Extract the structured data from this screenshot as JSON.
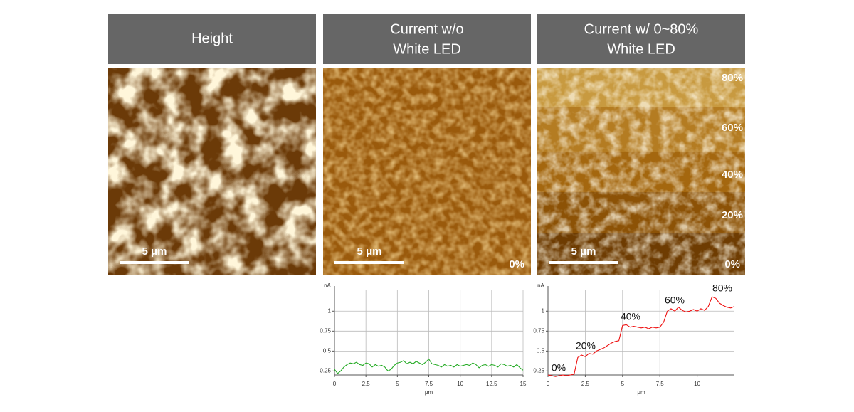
{
  "panels": [
    {
      "header": [
        "Height"
      ],
      "scale_bar": "5 μm"
    },
    {
      "header": [
        "Current w/o",
        "White LED"
      ],
      "scale_bar": "5 μm",
      "levels": [
        "0%"
      ]
    },
    {
      "header": [
        "Current w/ 0~80%",
        "White LED"
      ],
      "scale_bar": "5 μm",
      "levels": [
        "80%",
        "60%",
        "40%",
        "20%",
        "0%"
      ]
    }
  ],
  "chart_data": [
    {
      "type": "line",
      "y_label": "nA",
      "x_label": "μm",
      "xlim": [
        0,
        15
      ],
      "xticks": [
        0,
        2.5,
        5,
        7.5,
        10,
        12.5,
        15
      ],
      "ylim": [
        0.2,
        1.27
      ],
      "yticks": [
        0.25,
        0.5,
        0.75,
        1
      ],
      "grid": true,
      "x": [
        0,
        0.25,
        0.5,
        0.75,
        1,
        1.25,
        1.5,
        1.75,
        2,
        2.25,
        2.5,
        2.75,
        3,
        3.25,
        3.5,
        3.75,
        4,
        4.25,
        4.5,
        4.75,
        5,
        5.25,
        5.5,
        5.75,
        6,
        6.25,
        6.5,
        6.75,
        7,
        7.25,
        7.5,
        7.75,
        8,
        8.25,
        8.5,
        8.75,
        9,
        9.25,
        9.5,
        9.75,
        10,
        10.25,
        10.5,
        10.75,
        11,
        11.25,
        11.5,
        11.75,
        12,
        12.25,
        12.5,
        12.75,
        13,
        13.25,
        13.5,
        13.75,
        14,
        14.25,
        14.5,
        14.75,
        15
      ],
      "series": [
        {
          "color": "#22aa22",
          "values": [
            0.27,
            0.22,
            0.25,
            0.3,
            0.33,
            0.35,
            0.34,
            0.36,
            0.33,
            0.32,
            0.35,
            0.34,
            0.3,
            0.33,
            0.31,
            0.32,
            0.3,
            0.25,
            0.27,
            0.32,
            0.35,
            0.36,
            0.38,
            0.34,
            0.36,
            0.34,
            0.37,
            0.35,
            0.33,
            0.36,
            0.4,
            0.34,
            0.33,
            0.32,
            0.3,
            0.33,
            0.31,
            0.32,
            0.3,
            0.33,
            0.31,
            0.32,
            0.33,
            0.32,
            0.35,
            0.33,
            0.29,
            0.32,
            0.33,
            0.31,
            0.33,
            0.32,
            0.3,
            0.34,
            0.33,
            0.31,
            0.32,
            0.3,
            0.33,
            0.29,
            0.26
          ]
        }
      ]
    },
    {
      "type": "line",
      "y_label": "nA",
      "x_label": "μm",
      "xlim": [
        0,
        12.5
      ],
      "xticks": [
        0,
        2.5,
        5,
        7.5,
        10
      ],
      "ylim": [
        0.2,
        1.27
      ],
      "yticks": [
        0.25,
        0.5,
        0.75,
        1
      ],
      "grid": true,
      "annotations": [
        "0%",
        "20%",
        "40%",
        "60%",
        "80%"
      ],
      "x": [
        0,
        0.25,
        0.5,
        0.75,
        1,
        1.25,
        1.5,
        1.75,
        2,
        2.25,
        2.5,
        2.75,
        3,
        3.25,
        3.5,
        3.75,
        4,
        4.25,
        4.5,
        4.75,
        5,
        5.25,
        5.5,
        5.75,
        6,
        6.25,
        6.5,
        6.75,
        7,
        7.25,
        7.5,
        7.75,
        8,
        8.25,
        8.5,
        8.75,
        9,
        9.25,
        9.5,
        9.75,
        10,
        10.25,
        10.5,
        10.75,
        11,
        11.25,
        11.5,
        11.75,
        12,
        12.25,
        12.5
      ],
      "series": [
        {
          "color": "#ee1111",
          "values": [
            0.2,
            0.19,
            0.18,
            0.19,
            0.2,
            0.19,
            0.2,
            0.21,
            0.42,
            0.45,
            0.43,
            0.47,
            0.46,
            0.5,
            0.52,
            0.54,
            0.57,
            0.6,
            0.62,
            0.63,
            0.82,
            0.83,
            0.8,
            0.81,
            0.8,
            0.79,
            0.8,
            0.78,
            0.8,
            0.79,
            0.8,
            0.86,
            1.0,
            1.03,
            1.0,
            1.05,
            1.01,
            0.99,
            1.0,
            1.02,
            1.0,
            1.03,
            1.01,
            1.06,
            1.18,
            1.16,
            1.1,
            1.07,
            1.05,
            1.04,
            1.06
          ]
        }
      ]
    }
  ]
}
